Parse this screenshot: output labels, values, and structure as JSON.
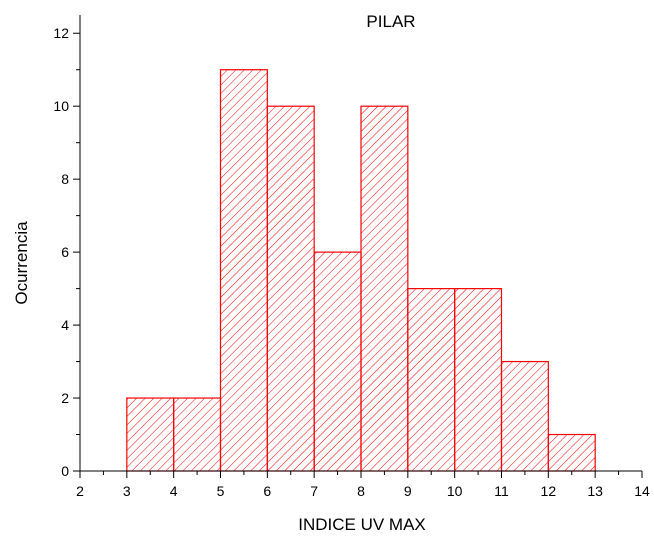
{
  "chart_data": {
    "type": "bar",
    "title": "PILAR",
    "xlabel": "INDICE UV MAX",
    "ylabel": "Ocurrencia",
    "xlim": [
      2,
      14
    ],
    "ylim": [
      0,
      12.5
    ],
    "x_ticks": [
      2,
      3,
      4,
      5,
      6,
      7,
      8,
      9,
      10,
      11,
      12,
      13,
      14
    ],
    "y_ticks": [
      0,
      2,
      4,
      6,
      8,
      10,
      12
    ],
    "grid": false,
    "bar_color": "#ff0000",
    "fill_pattern": "diagonal-hatch",
    "bins": [
      {
        "start": 3,
        "end": 4,
        "value": 2
      },
      {
        "start": 4,
        "end": 5,
        "value": 2
      },
      {
        "start": 5,
        "end": 6,
        "value": 11
      },
      {
        "start": 6,
        "end": 7,
        "value": 10
      },
      {
        "start": 7,
        "end": 8,
        "value": 6
      },
      {
        "start": 8,
        "end": 9,
        "value": 10
      },
      {
        "start": 9,
        "end": 10,
        "value": 5
      },
      {
        "start": 10,
        "end": 11,
        "value": 5
      },
      {
        "start": 11,
        "end": 12,
        "value": 3
      },
      {
        "start": 12,
        "end": 13,
        "value": 1
      }
    ]
  }
}
